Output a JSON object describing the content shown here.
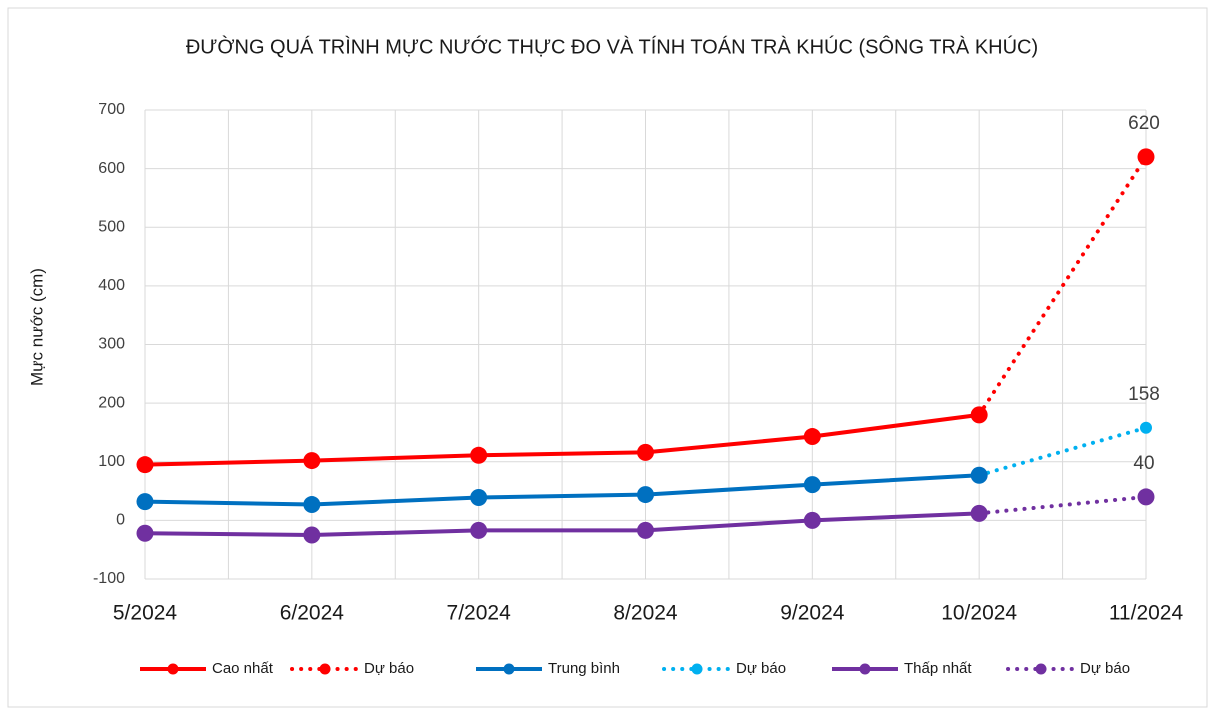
{
  "chart_data": {
    "type": "line",
    "title": "ĐƯỜNG QUÁ TRÌNH MỰC NƯỚC THỰC ĐO VÀ TÍNH TOÁN TRÀ KHÚC (SÔNG TRÀ KHÚC)",
    "y_label": "Mực nước (cm)",
    "categories": [
      "5/2024",
      "6/2024",
      "7/2024",
      "8/2024",
      "9/2024",
      "10/2024",
      "11/2024"
    ],
    "series": [
      {
        "name": "Cao nhất",
        "color": "#ff0000",
        "style": "solid",
        "values": [
          95,
          102,
          111,
          116,
          143,
          180,
          null
        ]
      },
      {
        "name": "Dự báo",
        "color": "#ff0000",
        "style": "dotted",
        "values": [
          null,
          null,
          null,
          null,
          null,
          180,
          620
        ]
      },
      {
        "name": "Trung bình",
        "color": "#0070c0",
        "style": "solid",
        "values": [
          32,
          27,
          39,
          44,
          61,
          77,
          null
        ]
      },
      {
        "name": "Dự báo",
        "color": "#00b0f0",
        "style": "dotted",
        "values": [
          null,
          null,
          null,
          null,
          null,
          77,
          158
        ]
      },
      {
        "name": "Thấp nhất",
        "color": "#7030a0",
        "style": "solid",
        "values": [
          -22,
          -25,
          -17,
          -17,
          0,
          12,
          null
        ]
      },
      {
        "name": "Dự báo",
        "color": "#7030a0",
        "style": "dotted",
        "values": [
          null,
          null,
          null,
          null,
          null,
          12,
          40
        ]
      }
    ],
    "ylim": [
      -100,
      700
    ],
    "yticks": [
      -100,
      0,
      100,
      200,
      300,
      400,
      500,
      600,
      700
    ],
    "grid": true,
    "legend": "bottom"
  }
}
